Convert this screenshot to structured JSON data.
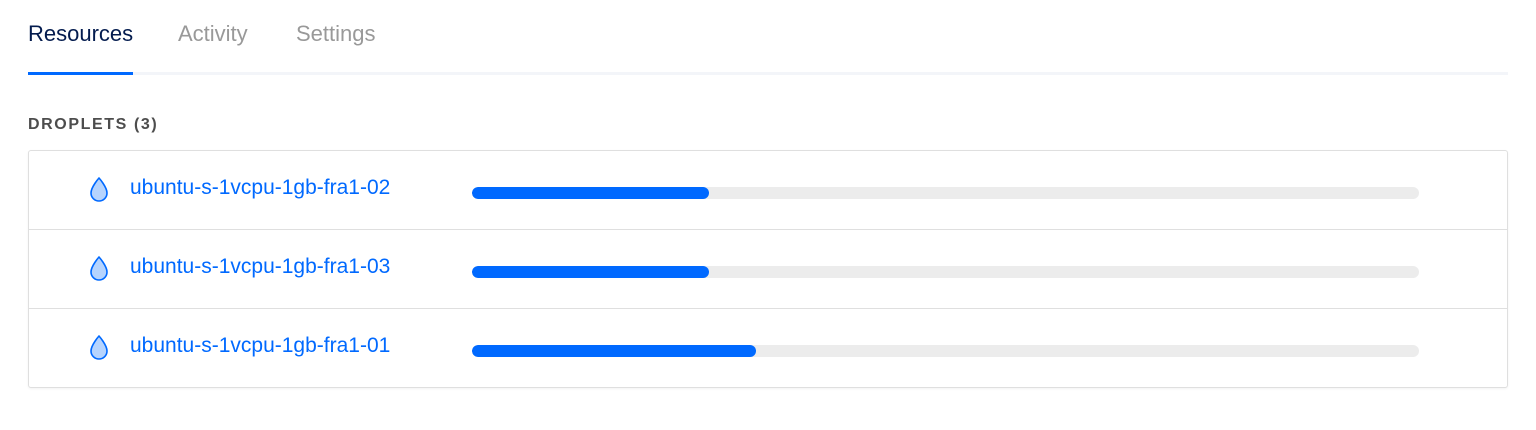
{
  "tabs": [
    {
      "label": "Resources",
      "active": true
    },
    {
      "label": "Activity",
      "active": false
    },
    {
      "label": "Settings",
      "active": false
    }
  ],
  "section": {
    "heading": "DROPLETS (3)"
  },
  "droplets": [
    {
      "name": "ubuntu-s-1vcpu-1gb-fra1-02",
      "icon": "droplet-icon",
      "usage_percent": 25
    },
    {
      "name": "ubuntu-s-1vcpu-1gb-fra1-03",
      "icon": "droplet-icon",
      "usage_percent": 25
    },
    {
      "name": "ubuntu-s-1vcpu-1gb-fra1-01",
      "icon": "droplet-icon",
      "usage_percent": 30
    }
  ],
  "colors": {
    "accent": "#0069ff",
    "active_tab_text": "#031b4e",
    "inactive_tab_text": "#999999",
    "bar_track": "#ececec"
  }
}
